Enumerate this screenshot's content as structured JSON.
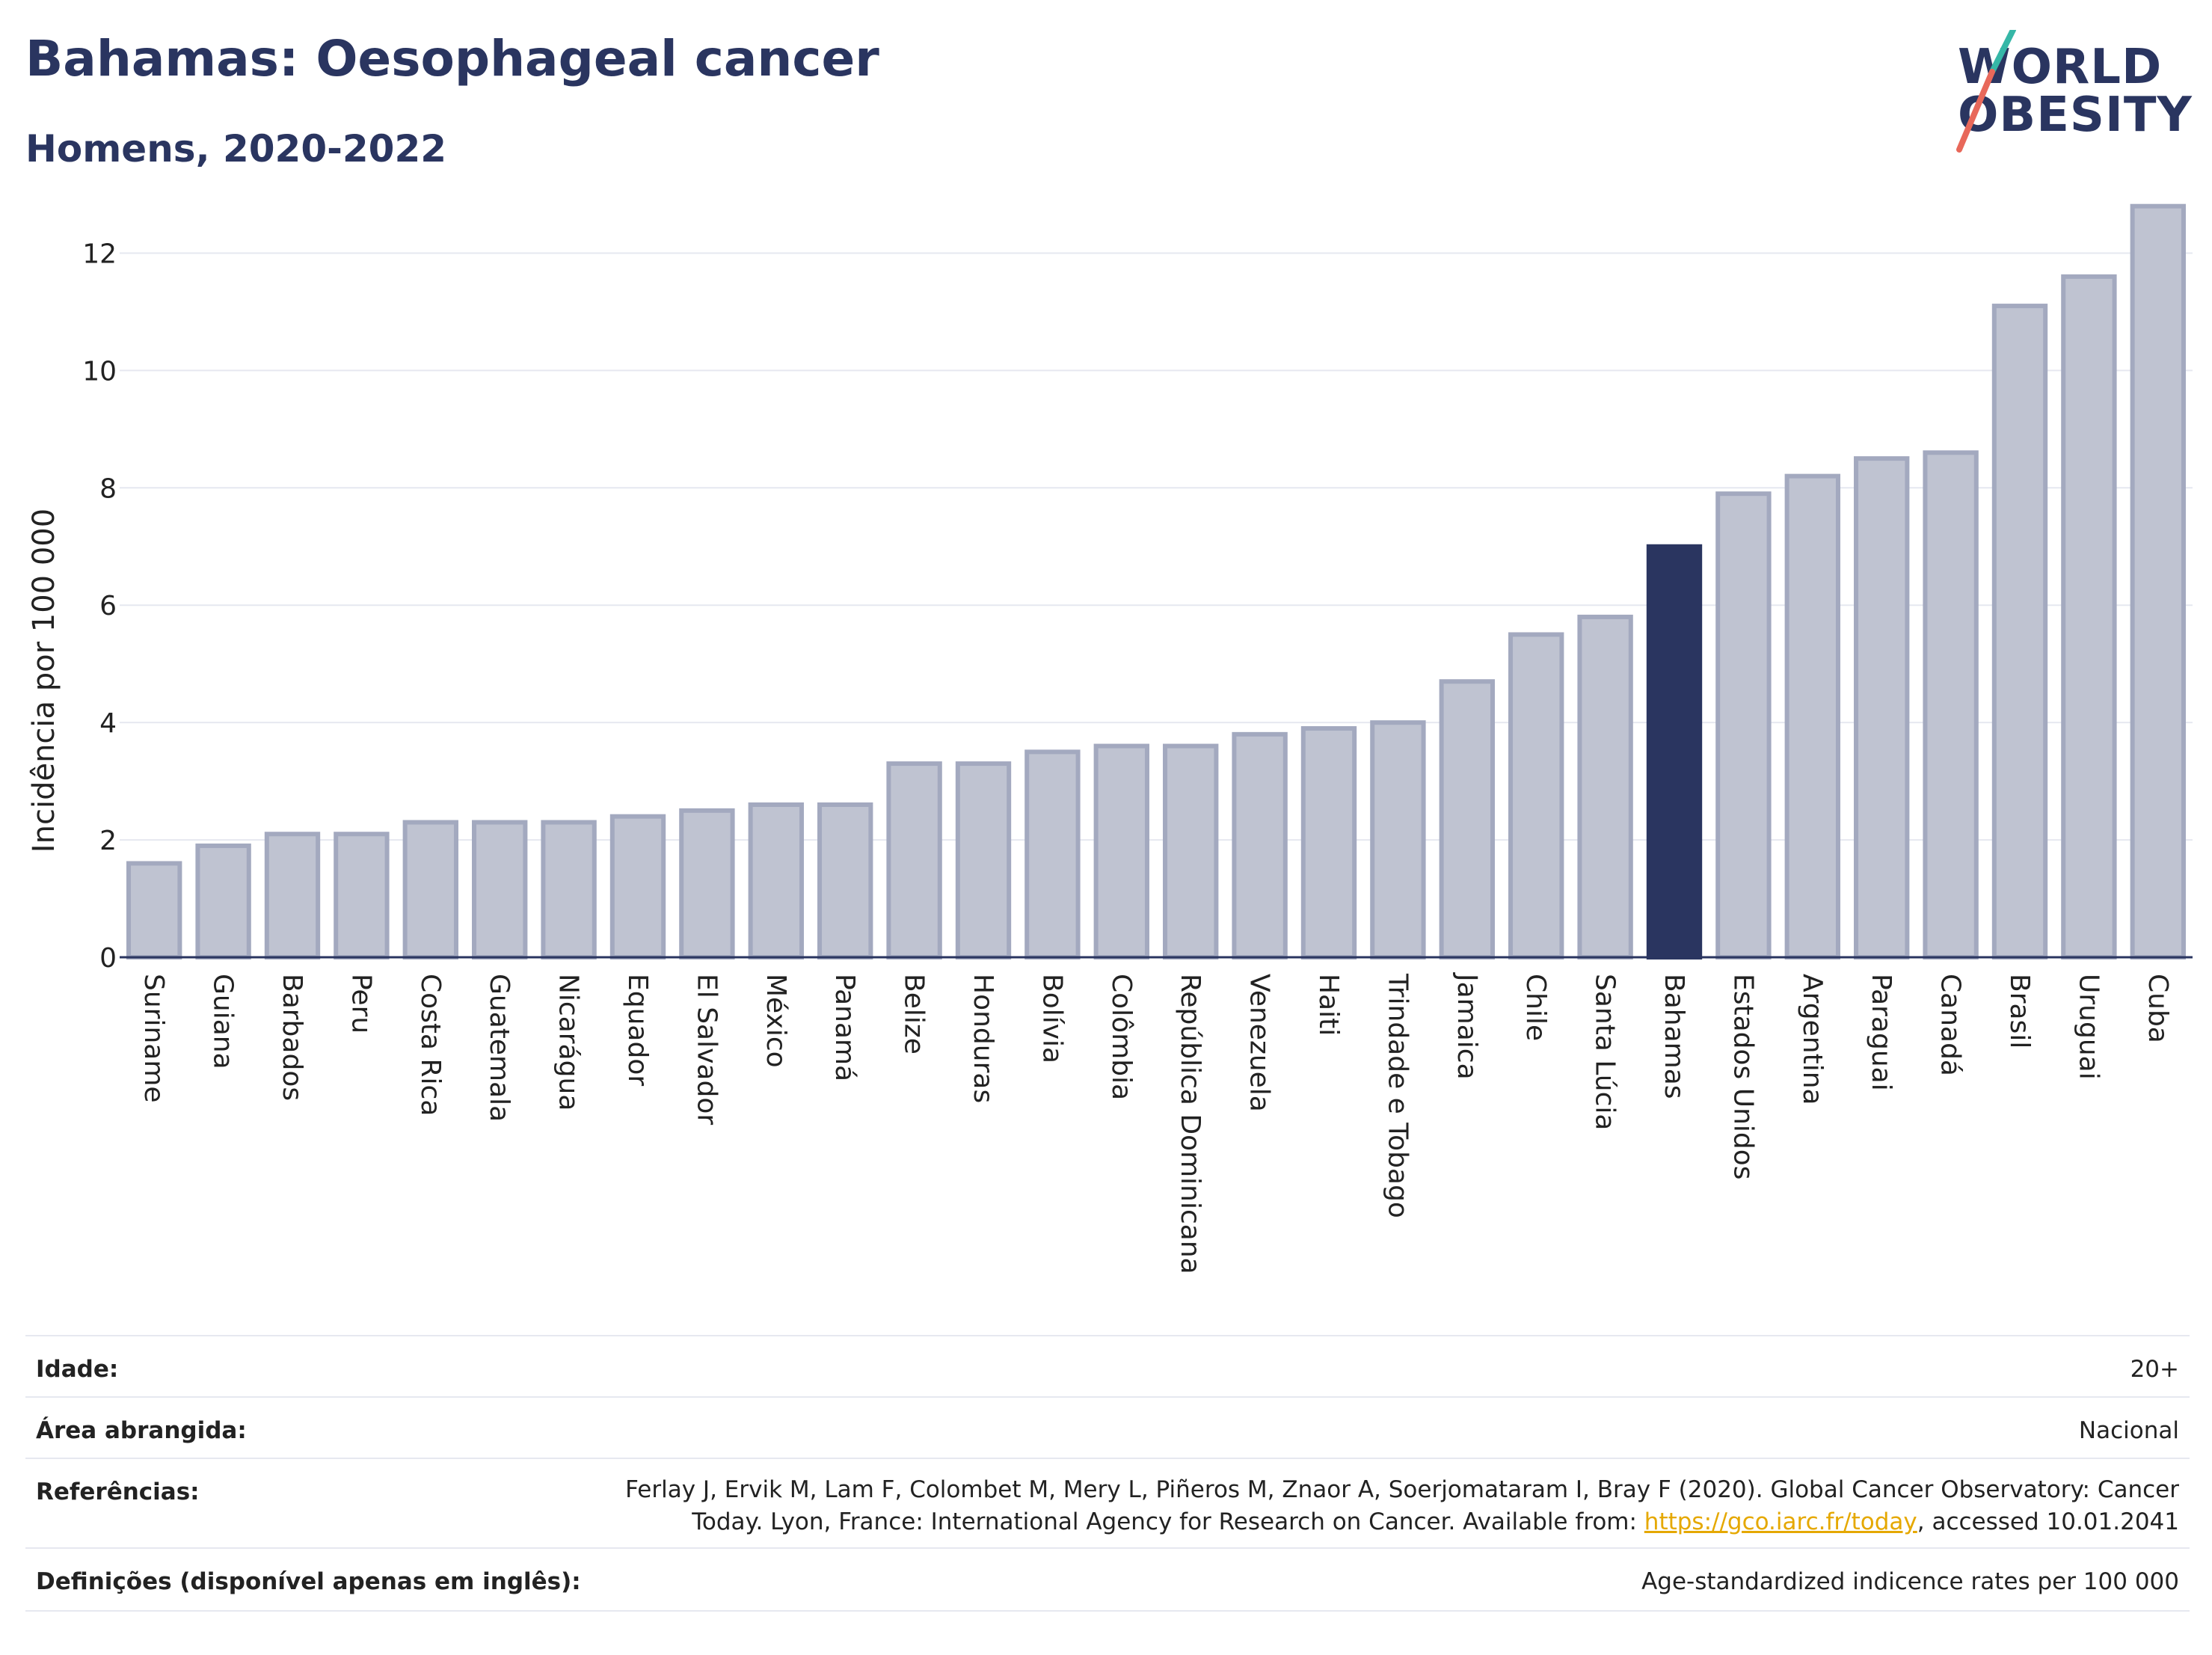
{
  "title": "Bahamas: Oesophageal cancer",
  "subtitle": "Homens, 2020-2022",
  "logo": {
    "line1": "WORLD",
    "line2": "OBESITY"
  },
  "colors": {
    "highlight": "#2a3560",
    "bar": "#bfc3d1",
    "bar_border": "#a3a9bf",
    "link": "#e5a800",
    "logo_slash_top": "#36b7a7",
    "logo_slash_bottom": "#e8685a"
  },
  "chart_data": {
    "type": "bar",
    "ylabel": "Incidência por 100 000",
    "ylim": [
      0,
      13
    ],
    "yticks": [
      0,
      2,
      4,
      6,
      8,
      10,
      12
    ],
    "grid": true,
    "highlight": "Bahamas",
    "categories": [
      "Suriname",
      "Guiana",
      "Barbados",
      "Peru",
      "Costa Rica",
      "Guatemala",
      "Nicarágua",
      "Equador",
      "El Salvador",
      "México",
      "Panamá",
      "Belize",
      "Honduras",
      "Bolívia",
      "Colômbia",
      "República Dominicana",
      "Venezuela",
      "Haiti",
      "Trindade e Tobago",
      "Jamaica",
      "Chile",
      "Santa Lúcia",
      "Bahamas",
      "Estados Unidos",
      "Argentina",
      "Paraguai",
      "Canadá",
      "Brasil",
      "Uruguai",
      "Cuba"
    ],
    "values": [
      1.6,
      1.9,
      2.1,
      2.1,
      2.3,
      2.3,
      2.3,
      2.4,
      2.5,
      2.6,
      2.6,
      3.3,
      3.3,
      3.5,
      3.6,
      3.6,
      3.8,
      3.9,
      4.0,
      4.7,
      5.5,
      5.8,
      7.0,
      7.9,
      8.2,
      8.5,
      8.6,
      11.1,
      11.6,
      12.8
    ]
  },
  "meta": {
    "age_label": "Idade:",
    "age_value": "20+",
    "area_label": "Área abrangida:",
    "area_value": "Nacional",
    "ref_label": "Referências:",
    "ref_line1": "Ferlay J, Ervik M, Lam F, Colombet M, Mery L, Piñeros M, Znaor A, Soerjomataram I, Bray F (2020). Global Cancer Observatory: Cancer",
    "ref_line2_pre": "Today. Lyon, France: International Agency for Research on Cancer. Available from: ",
    "ref_link": "https://gco.iarc.fr/today",
    "ref_line2_post": ", accessed 10.01.2041",
    "def_label": "Definições (disponível apenas em inglês):",
    "def_value": "Age-standardized indicence rates per 100 000"
  }
}
